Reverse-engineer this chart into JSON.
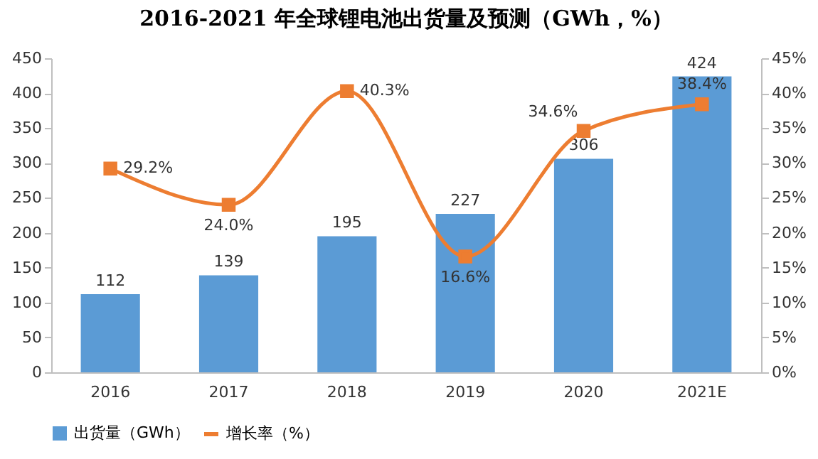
{
  "chart_data": {
    "type": "bar",
    "title": "2016-2021 年全球锂电池出货量及预测（GWh，%）",
    "categories": [
      "2016",
      "2017",
      "2018",
      "2019",
      "2020",
      "2021E"
    ],
    "series": [
      {
        "name": "出货量（GWh）",
        "color": "#5b9bd5",
        "values": [
          112,
          139,
          195,
          227,
          306,
          424
        ],
        "value_labels": [
          "112",
          "139",
          "195",
          "227",
          "306",
          "424"
        ]
      },
      {
        "name": "增长率（%）",
        "type": "line",
        "axis": "y2",
        "color": "#ed7d31",
        "values": [
          29.2,
          24.0,
          40.3,
          16.6,
          34.6,
          38.4
        ],
        "value_labels": [
          "29.2%",
          "24.0%",
          "40.3%",
          "16.6%",
          "34.6%",
          "38.4%"
        ]
      }
    ],
    "ylim": [
      0,
      450
    ],
    "yticks": [
      0,
      50,
      100,
      150,
      200,
      250,
      300,
      350,
      400,
      450
    ],
    "y2lim": [
      0,
      45
    ],
    "y2ticks": [
      {
        "value": 0,
        "label": "0%"
      },
      {
        "value": 5,
        "label": "5%"
      },
      {
        "value": 10,
        "label": "10%"
      },
      {
        "value": 15,
        "label": "15%"
      },
      {
        "value": 20,
        "label": "20%"
      },
      {
        "value": 25,
        "label": "25%"
      },
      {
        "value": 30,
        "label": "30%"
      },
      {
        "value": 35,
        "label": "35%"
      },
      {
        "value": 40,
        "label": "40%"
      },
      {
        "value": 45,
        "label": "45%"
      }
    ],
    "legend": "bottom",
    "marker": "square",
    "grid": false
  }
}
